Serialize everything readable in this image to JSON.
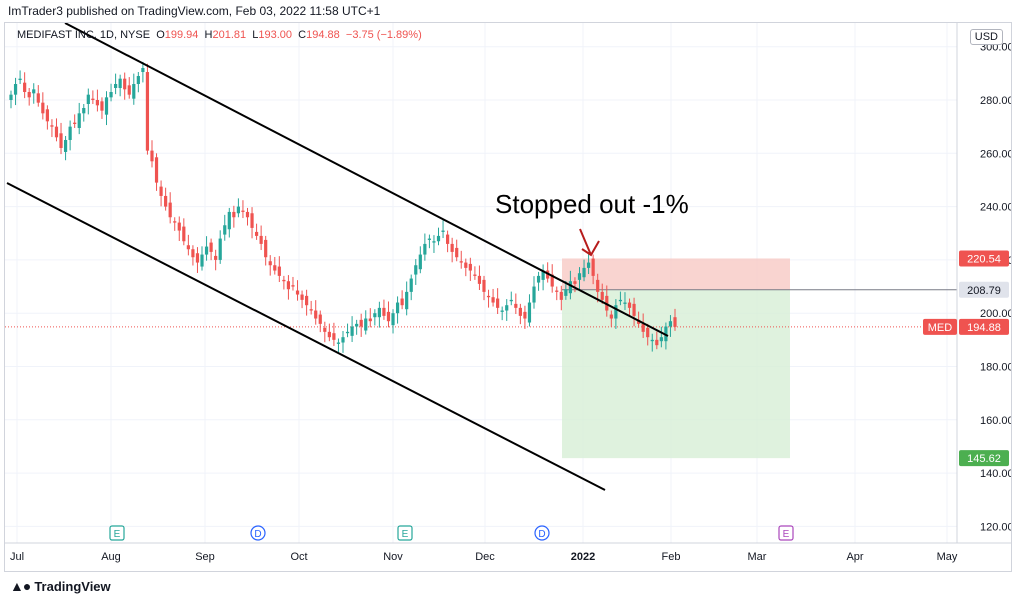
{
  "publisher": "ImTrader3 published on TradingView.com, Feb 03, 2022 11:58 UTC+1",
  "legend": {
    "symbol": "MEDIFAST INC, 1D, NYSE",
    "open_label": "O",
    "open": "199.94",
    "high_label": "H",
    "high": "201.81",
    "low_label": "L",
    "low": "193.00",
    "close_label": "C",
    "close": "194.88",
    "change": "−3.75 (−1.89%)"
  },
  "currency": "USD",
  "footer_brand": "TradingView",
  "colors": {
    "up": "#26a69a",
    "down": "#ef5350",
    "stop_zone": "#f8c9c4",
    "target_zone": "#d7efd6",
    "grid": "#f0f3fa"
  },
  "chart_data": {
    "type": "candlestick",
    "title": "",
    "symbol": "MED",
    "timeframe": "1D",
    "y_range": [
      120,
      305
    ],
    "y_ticks": [
      "300.00",
      "280.00",
      "260.00",
      "240.00",
      "220.00",
      "200.00",
      "180.00",
      "160.00",
      "140.00",
      "120.00"
    ],
    "x_ticks": [
      "Jul",
      "Aug",
      "Sep",
      "Oct",
      "Nov",
      "Dec",
      "2022",
      "Feb",
      "Mar",
      "Apr",
      "May"
    ],
    "price_labels": [
      {
        "text": "220.54",
        "value": 220.54,
        "kind": "stop"
      },
      {
        "text": "208.79",
        "value": 208.79,
        "kind": "entry"
      },
      {
        "text": "194.88",
        "value": 194.88,
        "kind": "last",
        "tag": "MED"
      },
      {
        "text": "145.62",
        "value": 145.62,
        "kind": "target"
      }
    ],
    "annotation": "Stopped out -1%",
    "earnings_markers": [
      {
        "label": "E",
        "month": "Aug"
      },
      {
        "label": "D",
        "month": "Sep"
      },
      {
        "label": "E",
        "month": "Nov"
      },
      {
        "label": "D",
        "month": "Dec"
      },
      {
        "label": "E",
        "month": "Mar",
        "future": true
      }
    ],
    "closes": [
      282,
      286,
      288,
      283,
      281,
      284,
      279,
      275,
      272,
      270,
      266,
      262,
      265,
      270,
      271,
      275,
      277,
      282,
      280,
      278,
      276,
      281,
      283,
      286,
      288,
      284,
      282,
      286,
      289,
      292,
      261,
      257,
      249,
      244,
      240,
      236,
      234,
      231,
      227,
      224,
      221,
      219,
      222,
      225,
      223,
      220,
      228,
      233,
      238,
      236,
      240,
      238,
      236,
      232,
      229,
      226,
      221,
      218,
      216,
      214,
      212,
      209,
      210,
      207,
      205,
      203,
      201,
      198,
      196,
      193,
      191,
      190,
      189,
      191,
      193,
      195,
      196,
      195,
      198,
      197,
      200,
      202,
      199,
      197,
      200,
      204,
      203,
      208,
      213,
      218,
      222,
      226,
      228,
      227,
      229,
      231,
      226,
      223,
      221,
      219,
      217,
      216,
      214,
      211,
      208,
      206,
      204,
      202,
      201,
      203,
      205,
      202,
      199,
      198,
      204,
      210,
      214,
      216,
      213,
      210,
      208,
      205,
      209,
      212,
      211,
      215,
      217,
      219,
      214,
      208,
      205,
      201,
      198,
      203,
      205,
      204,
      202,
      199,
      196,
      193,
      191,
      190,
      188,
      191,
      195,
      197,
      194.88
    ]
  }
}
